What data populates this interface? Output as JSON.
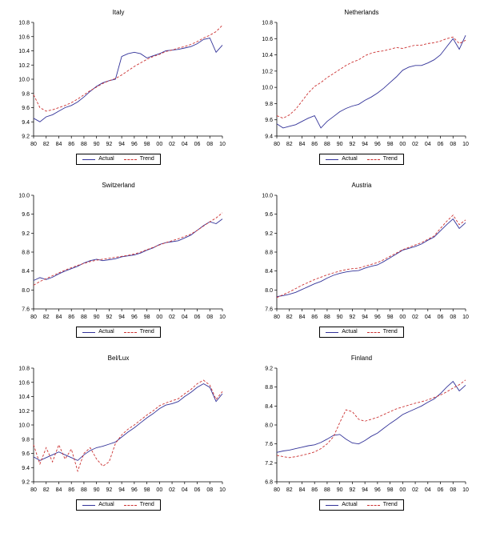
{
  "figure": {
    "colors": {
      "actual": "#333399",
      "trend": "#cc3333",
      "axis": "#000000",
      "background": "#ffffff"
    },
    "legend": {
      "actual_label": "Actual",
      "trend_label": "Trend"
    }
  },
  "chart_data": [
    {
      "type": "line",
      "title": "Italy",
      "x": [
        1980,
        1981,
        1982,
        1983,
        1984,
        1985,
        1986,
        1987,
        1988,
        1989,
        1990,
        1991,
        1992,
        1993,
        1994,
        1995,
        1996,
        1997,
        1998,
        1999,
        2000,
        2001,
        2002,
        2003,
        2004,
        2005,
        2006,
        2007,
        2008,
        2009,
        2010
      ],
      "x_tick_labels": [
        "80",
        "82",
        "84",
        "86",
        "88",
        "90",
        "92",
        "94",
        "96",
        "98",
        "00",
        "02",
        "04",
        "06",
        "08",
        "10"
      ],
      "y_tick_labels": [
        "9.2",
        "9.4",
        "9.6",
        "9.8",
        "10.0",
        "10.2",
        "10.4",
        "10.6",
        "10.8"
      ],
      "ylim": [
        9.2,
        10.8
      ],
      "legend_position": "bottom",
      "grid": false,
      "series": [
        {
          "name": "Actual",
          "style": "solid",
          "color": "#333399",
          "values": [
            9.45,
            9.4,
            9.47,
            9.5,
            9.55,
            9.6,
            9.63,
            9.68,
            9.75,
            9.83,
            9.9,
            9.95,
            9.98,
            10.0,
            10.32,
            10.36,
            10.38,
            10.36,
            10.3,
            10.33,
            10.36,
            10.4,
            10.41,
            10.42,
            10.44,
            10.46,
            10.5,
            10.56,
            10.58,
            10.38,
            10.48
          ]
        },
        {
          "name": "Trend",
          "style": "dashed",
          "color": "#cc3333",
          "values": [
            9.78,
            9.6,
            9.55,
            9.57,
            9.6,
            9.63,
            9.67,
            9.72,
            9.78,
            9.84,
            9.89,
            9.94,
            9.98,
            10.01,
            10.06,
            10.12,
            10.18,
            10.23,
            10.28,
            10.32,
            10.35,
            10.39,
            10.41,
            10.44,
            10.46,
            10.49,
            10.53,
            10.58,
            10.62,
            10.67,
            10.76
          ]
        }
      ]
    },
    {
      "type": "line",
      "title": "Netherlands",
      "x": [
        1980,
        1981,
        1982,
        1983,
        1984,
        1985,
        1986,
        1987,
        1988,
        1989,
        1990,
        1991,
        1992,
        1993,
        1994,
        1995,
        1996,
        1997,
        1998,
        1999,
        2000,
        2001,
        2002,
        2003,
        2004,
        2005,
        2006,
        2007,
        2008,
        2009,
        2010
      ],
      "x_tick_labels": [
        "80",
        "82",
        "84",
        "86",
        "88",
        "90",
        "92",
        "94",
        "96",
        "98",
        "00",
        "02",
        "04",
        "06",
        "08",
        "10"
      ],
      "y_tick_labels": [
        "9.4",
        "9.6",
        "9.8",
        "10.0",
        "10.2",
        "10.4",
        "10.6",
        "10.8"
      ],
      "ylim": [
        9.4,
        10.8
      ],
      "legend_position": "bottom",
      "grid": false,
      "series": [
        {
          "name": "Actual",
          "style": "solid",
          "color": "#333399",
          "values": [
            9.55,
            9.5,
            9.52,
            9.54,
            9.58,
            9.62,
            9.65,
            9.5,
            9.58,
            9.64,
            9.7,
            9.74,
            9.77,
            9.79,
            9.84,
            9.88,
            9.93,
            9.99,
            10.06,
            10.13,
            10.21,
            10.25,
            10.27,
            10.27,
            10.3,
            10.34,
            10.4,
            10.5,
            10.6,
            10.47,
            10.64
          ]
        },
        {
          "name": "Trend",
          "style": "dashed",
          "color": "#cc3333",
          "values": [
            9.65,
            9.62,
            9.66,
            9.73,
            9.83,
            9.93,
            10.01,
            10.06,
            10.12,
            10.17,
            10.22,
            10.27,
            10.31,
            10.34,
            10.39,
            10.42,
            10.44,
            10.45,
            10.47,
            10.49,
            10.48,
            10.5,
            10.52,
            10.52,
            10.54,
            10.55,
            10.57,
            10.6,
            10.62,
            10.54,
            10.58
          ]
        }
      ]
    },
    {
      "type": "line",
      "title": "Switzerland",
      "x": [
        1980,
        1981,
        1982,
        1983,
        1984,
        1985,
        1986,
        1987,
        1988,
        1989,
        1990,
        1991,
        1992,
        1993,
        1994,
        1995,
        1996,
        1997,
        1998,
        1999,
        2000,
        2001,
        2002,
        2003,
        2004,
        2005,
        2006,
        2007,
        2008,
        2009,
        2010
      ],
      "x_tick_labels": [
        "80",
        "82",
        "84",
        "86",
        "88",
        "90",
        "92",
        "94",
        "96",
        "98",
        "00",
        "02",
        "04",
        "06",
        "08",
        "10"
      ],
      "y_tick_labels": [
        "7.6",
        "8.0",
        "8.4",
        "8.8",
        "9.2",
        "9.6",
        "10.0"
      ],
      "ylim": [
        7.6,
        10.0
      ],
      "legend_position": "bottom",
      "grid": false,
      "series": [
        {
          "name": "Actual",
          "style": "solid",
          "color": "#333399",
          "values": [
            8.2,
            8.26,
            8.22,
            8.27,
            8.34,
            8.4,
            8.45,
            8.5,
            8.57,
            8.62,
            8.65,
            8.62,
            8.64,
            8.66,
            8.7,
            8.72,
            8.74,
            8.78,
            8.84,
            8.89,
            8.96,
            9.0,
            9.02,
            9.04,
            9.1,
            9.16,
            9.26,
            9.36,
            9.44,
            9.4,
            9.5
          ]
        },
        {
          "name": "Trend",
          "style": "dashed",
          "color": "#cc3333",
          "values": [
            8.1,
            8.18,
            8.24,
            8.3,
            8.36,
            8.42,
            8.47,
            8.52,
            8.56,
            8.6,
            8.63,
            8.65,
            8.67,
            8.69,
            8.71,
            8.73,
            8.76,
            8.8,
            8.85,
            8.9,
            8.95,
            9.0,
            9.04,
            9.08,
            9.13,
            9.18,
            9.26,
            9.35,
            9.44,
            9.52,
            9.63
          ]
        }
      ]
    },
    {
      "type": "line",
      "title": "Austria",
      "x": [
        1980,
        1981,
        1982,
        1983,
        1984,
        1985,
        1986,
        1987,
        1988,
        1989,
        1990,
        1991,
        1992,
        1993,
        1994,
        1995,
        1996,
        1997,
        1998,
        1999,
        2000,
        2001,
        2002,
        2003,
        2004,
        2005,
        2006,
        2007,
        2008,
        2009,
        2010
      ],
      "x_tick_labels": [
        "80",
        "82",
        "84",
        "86",
        "88",
        "90",
        "92",
        "94",
        "96",
        "98",
        "00",
        "02",
        "04",
        "06",
        "08",
        "10"
      ],
      "y_tick_labels": [
        "7.6",
        "8.0",
        "8.4",
        "8.8",
        "9.2",
        "9.6",
        "10.0"
      ],
      "ylim": [
        7.6,
        10.0
      ],
      "legend_position": "bottom",
      "grid": false,
      "series": [
        {
          "name": "Actual",
          "style": "solid",
          "color": "#333399",
          "values": [
            7.86,
            7.88,
            7.91,
            7.95,
            8.01,
            8.07,
            8.13,
            8.18,
            8.25,
            8.31,
            8.35,
            8.38,
            8.4,
            8.41,
            8.46,
            8.5,
            8.53,
            8.6,
            8.68,
            8.76,
            8.84,
            8.88,
            8.92,
            8.97,
            9.05,
            9.12,
            9.25,
            9.38,
            9.5,
            9.3,
            9.42
          ]
        },
        {
          "name": "Trend",
          "style": "dashed",
          "color": "#cc3333",
          "values": [
            7.84,
            7.9,
            7.96,
            8.03,
            8.1,
            8.16,
            8.22,
            8.27,
            8.32,
            8.36,
            8.4,
            8.43,
            8.45,
            8.46,
            8.5,
            8.54,
            8.58,
            8.64,
            8.71,
            8.78,
            8.85,
            8.9,
            8.95,
            9.0,
            9.07,
            9.14,
            9.3,
            9.45,
            9.58,
            9.38,
            9.48
          ]
        }
      ]
    },
    {
      "type": "line",
      "title": "Bel/Lux",
      "x": [
        1980,
        1981,
        1982,
        1983,
        1984,
        1985,
        1986,
        1987,
        1988,
        1989,
        1990,
        1991,
        1992,
        1993,
        1994,
        1995,
        1996,
        1997,
        1998,
        1999,
        2000,
        2001,
        2002,
        2003,
        2004,
        2005,
        2006,
        2007,
        2008,
        2009,
        2010
      ],
      "x_tick_labels": [
        "80",
        "82",
        "84",
        "86",
        "88",
        "90",
        "92",
        "94",
        "96",
        "98",
        "00",
        "02",
        "04",
        "06",
        "08",
        "10"
      ],
      "y_tick_labels": [
        "9.2",
        "9.4",
        "9.6",
        "9.8",
        "10.0",
        "10.2",
        "10.4",
        "10.6",
        "10.8"
      ],
      "ylim": [
        9.2,
        10.8
      ],
      "legend_position": "bottom",
      "grid": false,
      "series": [
        {
          "name": "Actual",
          "style": "solid",
          "color": "#333399",
          "values": [
            9.55,
            9.5,
            9.54,
            9.58,
            9.62,
            9.58,
            9.54,
            9.5,
            9.58,
            9.64,
            9.68,
            9.7,
            9.73,
            9.76,
            9.83,
            9.9,
            9.96,
            10.03,
            10.1,
            10.16,
            10.23,
            10.28,
            10.3,
            10.33,
            10.4,
            10.46,
            10.53,
            10.58,
            10.53,
            10.33,
            10.44
          ]
        },
        {
          "name": "Trend",
          "style": "dashed",
          "color": "#cc3333",
          "values": [
            9.72,
            9.45,
            9.68,
            9.48,
            9.72,
            9.52,
            9.66,
            9.35,
            9.6,
            9.68,
            9.52,
            9.42,
            9.48,
            9.74,
            9.86,
            9.94,
            10.0,
            10.07,
            10.14,
            10.2,
            10.27,
            10.31,
            10.34,
            10.37,
            10.44,
            10.5,
            10.58,
            10.63,
            10.56,
            10.36,
            10.47
          ]
        }
      ]
    },
    {
      "type": "line",
      "title": "Finland",
      "x": [
        1980,
        1981,
        1982,
        1983,
        1984,
        1985,
        1986,
        1987,
        1988,
        1989,
        1990,
        1991,
        1992,
        1993,
        1994,
        1995,
        1996,
        1997,
        1998,
        1999,
        2000,
        2001,
        2002,
        2003,
        2004,
        2005,
        2006,
        2007,
        2008,
        2009,
        2010
      ],
      "x_tick_labels": [
        "80",
        "82",
        "84",
        "86",
        "88",
        "90",
        "92",
        "94",
        "96",
        "98",
        "00",
        "02",
        "04",
        "06",
        "08",
        "10"
      ],
      "y_tick_labels": [
        "6.8",
        "7.2",
        "7.6",
        "8.0",
        "8.4",
        "8.8",
        "9.2"
      ],
      "ylim": [
        6.8,
        9.2
      ],
      "legend_position": "bottom",
      "grid": false,
      "series": [
        {
          "name": "Actual",
          "style": "solid",
          "color": "#333399",
          "values": [
            7.42,
            7.45,
            7.47,
            7.5,
            7.53,
            7.56,
            7.58,
            7.63,
            7.7,
            7.78,
            7.8,
            7.7,
            7.62,
            7.6,
            7.67,
            7.76,
            7.83,
            7.93,
            8.03,
            8.12,
            8.22,
            8.28,
            8.34,
            8.4,
            8.48,
            8.55,
            8.66,
            8.8,
            8.92,
            8.72,
            8.84
          ]
        },
        {
          "name": "Trend",
          "style": "dashed",
          "color": "#cc3333",
          "values": [
            7.36,
            7.33,
            7.31,
            7.33,
            7.36,
            7.39,
            7.43,
            7.5,
            7.6,
            7.75,
            8.05,
            8.32,
            8.28,
            8.12,
            8.08,
            8.12,
            8.16,
            8.22,
            8.28,
            8.34,
            8.38,
            8.42,
            8.46,
            8.49,
            8.53,
            8.58,
            8.63,
            8.7,
            8.78,
            8.85,
            8.95
          ]
        }
      ]
    }
  ]
}
